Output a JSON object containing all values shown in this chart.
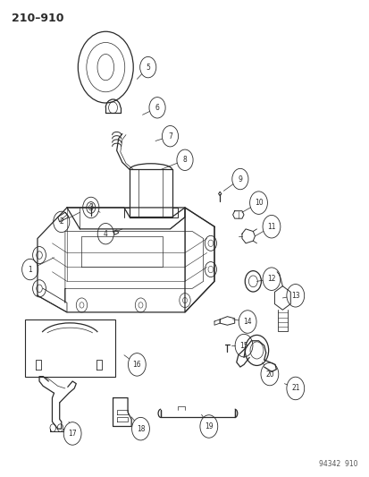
{
  "title": "210–910",
  "footer": "94342  910",
  "bg_color": "#ffffff",
  "line_color": "#2a2a2a",
  "figsize": [
    4.14,
    5.33
  ],
  "dpi": 100,
  "callouts": [
    [
      0.08,
      0.435,
      0.145,
      0.46,
      1
    ],
    [
      0.165,
      0.535,
      0.215,
      0.555,
      2
    ],
    [
      0.245,
      0.565,
      0.27,
      0.555,
      3
    ],
    [
      0.285,
      0.51,
      0.315,
      0.515,
      4
    ],
    [
      0.4,
      0.86,
      0.37,
      0.835,
      5
    ],
    [
      0.425,
      0.775,
      0.385,
      0.76,
      6
    ],
    [
      0.46,
      0.715,
      0.42,
      0.705,
      7
    ],
    [
      0.5,
      0.665,
      0.435,
      0.645,
      8
    ],
    [
      0.65,
      0.625,
      0.605,
      0.6,
      9
    ],
    [
      0.7,
      0.575,
      0.655,
      0.555,
      10
    ],
    [
      0.735,
      0.525,
      0.69,
      0.505,
      11
    ],
    [
      0.735,
      0.415,
      0.695,
      0.41,
      12
    ],
    [
      0.8,
      0.38,
      0.765,
      0.375,
      13
    ],
    [
      0.67,
      0.325,
      0.63,
      0.33,
      14
    ],
    [
      0.66,
      0.275,
      0.625,
      0.275,
      15
    ],
    [
      0.37,
      0.235,
      0.335,
      0.255,
      16
    ],
    [
      0.195,
      0.09,
      0.185,
      0.115,
      17
    ],
    [
      0.38,
      0.1,
      0.355,
      0.125,
      18
    ],
    [
      0.565,
      0.105,
      0.545,
      0.13,
      19
    ],
    [
      0.73,
      0.215,
      0.71,
      0.24,
      20
    ],
    [
      0.8,
      0.185,
      0.77,
      0.195,
      21
    ]
  ]
}
